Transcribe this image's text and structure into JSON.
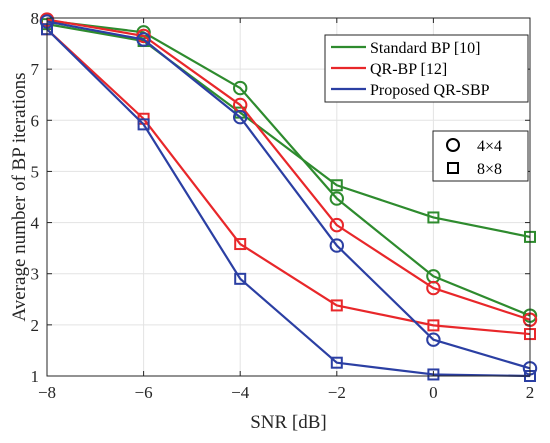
{
  "chart_data": {
    "type": "line",
    "xlabel": "SNR [dB]",
    "ylabel": "Average number of BP iterations",
    "xlim": [
      -8,
      2
    ],
    "ylim": [
      1,
      8
    ],
    "xticks": [
      -8,
      -6,
      -4,
      -2,
      0,
      2
    ],
    "yticks": [
      1,
      2,
      3,
      4,
      5,
      6,
      7,
      8
    ],
    "grid": true,
    "x": [
      -8,
      -6,
      -4,
      -2,
      0,
      2
    ],
    "series": [
      {
        "name": "Standard BP [10]",
        "color": "#2e8b2e",
        "marker": "circle",
        "antenna": "4×4",
        "values": [
          7.95,
          7.72,
          6.63,
          4.47,
          2.95,
          2.18
        ]
      },
      {
        "name": "Standard BP [10]",
        "color": "#2e8b2e",
        "marker": "square",
        "antenna": "8×8",
        "values": [
          7.88,
          7.55,
          6.15,
          4.73,
          4.1,
          3.72
        ]
      },
      {
        "name": "QR-BP [12]",
        "color": "#e8272a",
        "marker": "circle",
        "antenna": "4×4",
        "values": [
          7.97,
          7.65,
          6.3,
          3.95,
          2.72,
          2.1
        ]
      },
      {
        "name": "QR-BP [12]",
        "color": "#e8272a",
        "marker": "square",
        "antenna": "8×8",
        "values": [
          7.78,
          6.03,
          3.58,
          2.38,
          1.99,
          1.82
        ]
      },
      {
        "name": "Proposed QR-SBP",
        "color": "#2b3fa3",
        "marker": "circle",
        "antenna": "4×4",
        "values": [
          7.93,
          7.58,
          6.06,
          3.55,
          1.71,
          1.15
        ]
      },
      {
        "name": "Proposed QR-SBP",
        "color": "#2b3fa3",
        "marker": "square",
        "antenna": "8×8",
        "values": [
          7.78,
          5.92,
          2.9,
          1.26,
          1.03,
          1.0
        ]
      }
    ],
    "legend": {
      "placement": "top-right",
      "entries": [
        {
          "label": "Standard BP [10]",
          "color": "#2e8b2e"
        },
        {
          "label": "QR-BP [12]",
          "color": "#e8272a"
        },
        {
          "label": "Proposed QR-SBP",
          "color": "#2b3fa3"
        }
      ]
    },
    "marker_legend": {
      "placement": "right",
      "entries": [
        {
          "label": "4×4",
          "marker": "circle"
        },
        {
          "label": "8×8",
          "marker": "square"
        }
      ]
    }
  }
}
